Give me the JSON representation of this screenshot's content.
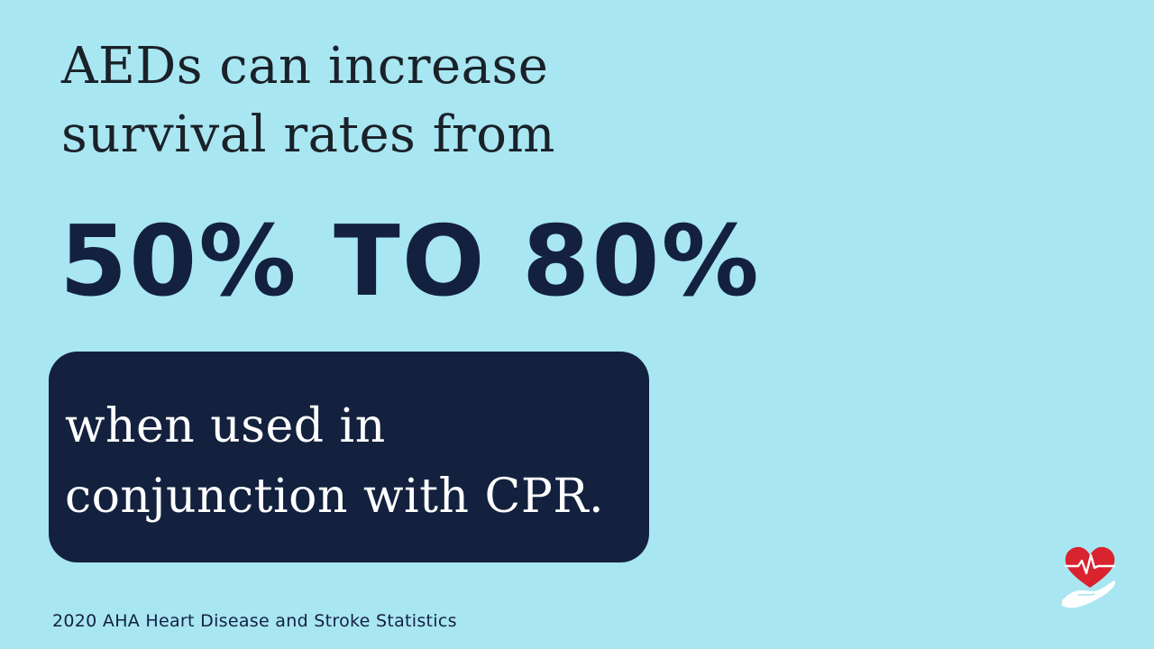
{
  "headline": {
    "line1": "AEDs can increase",
    "line2": "survival rates from"
  },
  "statistic": {
    "text": "50% TO 80%",
    "from_percent": 50,
    "to_percent": 80
  },
  "note": {
    "line1": "when used in",
    "line2": "conjunction with CPR."
  },
  "source": "2020 AHA Heart Disease and Stroke Statistics",
  "logo": {
    "icon": "heart-in-hand-icon",
    "heart_color": "#d9232e",
    "hand_color": "#ffffff"
  },
  "colors": {
    "background": "#a8e6f2",
    "navy": "#13213f",
    "headline_text": "#1a2128",
    "note_text": "#ffffff"
  }
}
